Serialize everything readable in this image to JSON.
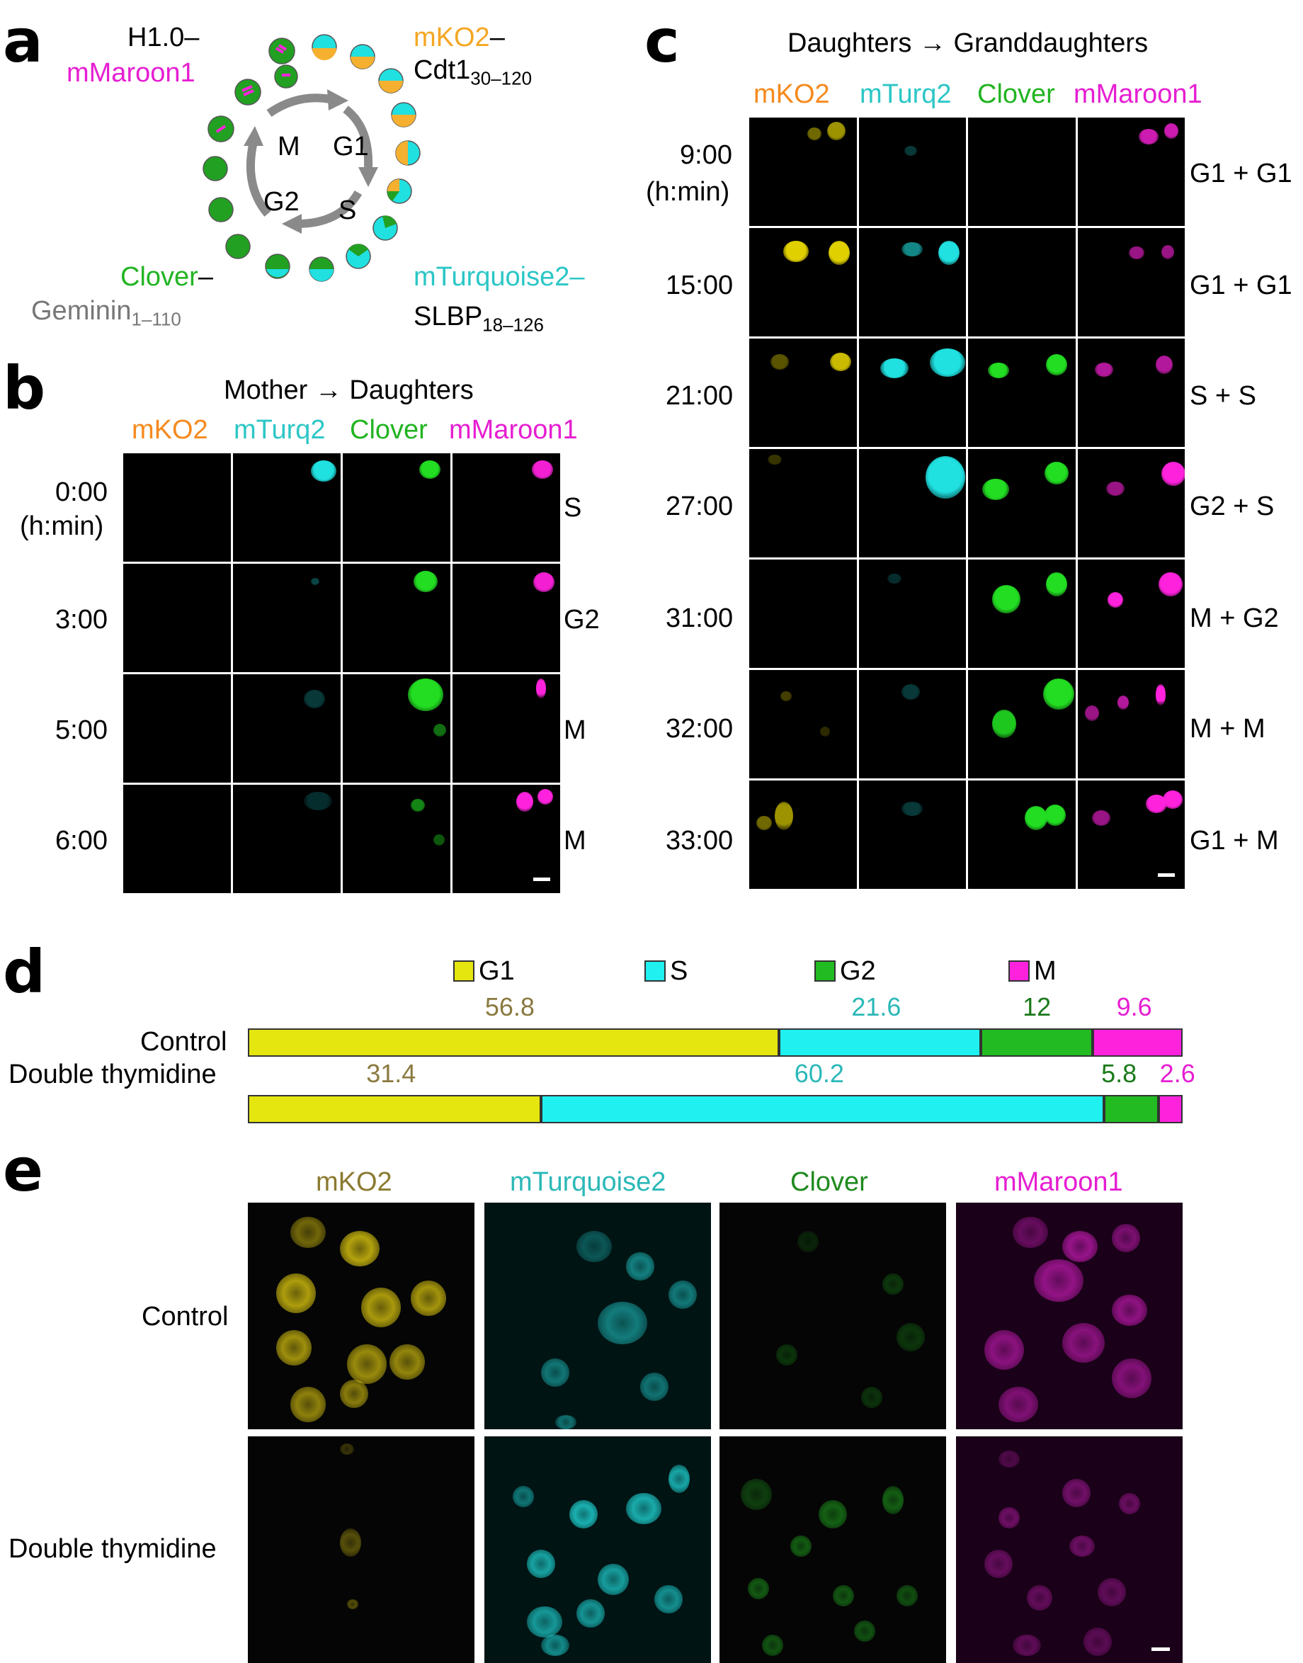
{
  "panel_labels": {
    "a": "a",
    "b": "b",
    "c": "c",
    "d": "d",
    "e": "e"
  },
  "colors": {
    "mko2": "#f5a623",
    "mturq": "#2cc6c6",
    "clover": "#22b422",
    "mmaroon": "#e61ed2",
    "gray": "#777777",
    "g1": "#e5e510",
    "s": "#20f0f0",
    "g2": "#22bb22",
    "m": "#ff22dd"
  },
  "panel_a": {
    "h1_line1": "H1.0–",
    "h1_line2": "mMaroon1",
    "mko2_line1": "mKO2",
    "mko2_dash": "–",
    "cdt1": "Cdt1",
    "cdt1_sub": "30–120",
    "clover_line1": "Clover",
    "clover_dash": "–",
    "geminin": "Geminin",
    "geminin_sub": "1–110",
    "mturq_line1": "mTurquoise2–",
    "slbp": "SLBP",
    "slbp_sub": "18–126",
    "phase_m": "M",
    "phase_g1": "G1",
    "phase_g2": "G2",
    "phase_s": "S"
  },
  "panel_b": {
    "title": "Mother → Daughters",
    "channels": [
      "mKO2",
      "mTurq2",
      "Clover",
      "mMaroon1"
    ],
    "times": [
      "0:00",
      "3:00",
      "5:00",
      "6:00"
    ],
    "time_unit": "(h:min)",
    "stages": [
      "S",
      "G2",
      "M",
      "M"
    ]
  },
  "panel_c": {
    "title": "Daughters → Granddaughters",
    "channels": [
      "mKO2",
      "mTurq2",
      "Clover",
      "mMaroon1"
    ],
    "times": [
      "9:00",
      "15:00",
      "21:00",
      "27:00",
      "31:00",
      "32:00",
      "33:00"
    ],
    "time_unit": "(h:min)",
    "stages": [
      "G1 + G1",
      "G1 + G1",
      "S + S",
      "G2 + S",
      "M + G2",
      "M + M",
      "G1 + M"
    ]
  },
  "panel_d": {
    "legend": [
      "G1",
      "S",
      "G2",
      "M"
    ],
    "rows": [
      {
        "label": "Control",
        "values_text": [
          "56.8",
          "21.6",
          "12",
          "9.6"
        ]
      },
      {
        "label": "Double thymidine",
        "values_text": [
          "31.4",
          "60.2",
          "5.8",
          "2.6"
        ]
      }
    ]
  },
  "chart_data": {
    "type": "bar",
    "categories": [
      "Control",
      "Double thymidine"
    ],
    "series": [
      {
        "name": "G1",
        "values": [
          56.8,
          31.4
        ]
      },
      {
        "name": "S",
        "values": [
          21.6,
          60.2
        ]
      },
      {
        "name": "G2",
        "values": [
          12,
          5.8
        ]
      },
      {
        "name": "M",
        "values": [
          9.6,
          2.6
        ]
      }
    ],
    "stacked": true,
    "orientation": "horizontal",
    "xlim": [
      0,
      100
    ],
    "grid": false,
    "legend_position": "top"
  },
  "panel_e": {
    "channels": [
      "mKO2",
      "mTurquoise2",
      "Clover",
      "mMaroon1"
    ],
    "rows": [
      "Control",
      "Double thymidine"
    ]
  }
}
